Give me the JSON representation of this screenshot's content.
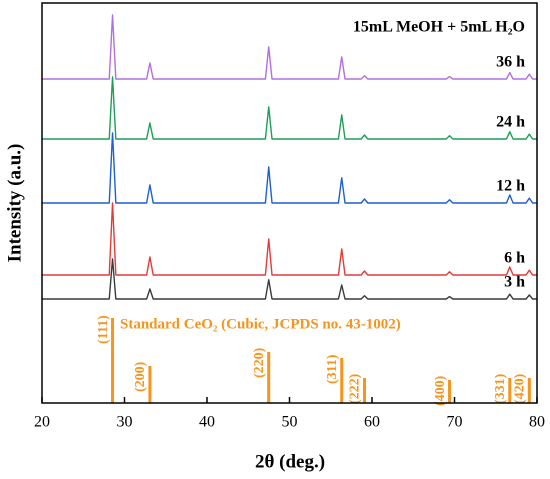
{
  "chart_data": {
    "type": "line",
    "title": "15mL MeOH + 5mL H₂O",
    "xlabel": "2θ (deg.)",
    "ylabel": "Intensity (a.u.)",
    "xlim": [
      20,
      80
    ],
    "xticks": [
      20,
      30,
      40,
      50,
      60,
      70,
      80
    ],
    "ylim": [
      0,
      100
    ],
    "x": [
      20,
      28.15,
      28.55,
      28.95,
      32.68,
      33.08,
      33.48,
      47.08,
      47.48,
      47.88,
      55.93,
      56.33,
      56.73,
      58.69,
      59.09,
      59.49,
      69.0,
      69.4,
      69.8,
      76.3,
      76.7,
      77.1,
      78.67,
      79.07,
      79.47,
      80
    ],
    "series": [
      {
        "name": "3 h",
        "color": "#3a3a3a",
        "values": [
          26,
          26,
          36,
          26,
          26,
          28.5,
          26,
          26,
          30.8,
          26,
          26,
          29.5,
          26,
          26,
          26.8,
          26,
          26,
          26.6,
          26,
          26,
          27.2,
          26,
          26,
          27,
          26,
          26
        ]
      },
      {
        "name": "6 h",
        "color": "#e23b3b",
        "values": [
          32,
          32,
          50,
          32,
          32,
          36.5,
          32,
          32,
          41,
          32,
          32,
          38.5,
          32,
          32,
          33,
          32,
          32,
          32.8,
          32,
          32,
          34,
          32,
          32,
          33.2,
          32,
          32
        ]
      },
      {
        "name": "12 h",
        "color": "#1f5fd0",
        "values": [
          50,
          50,
          67.5,
          50,
          50,
          54.5,
          50,
          50,
          59,
          50,
          50,
          56.3,
          50,
          50,
          51,
          50,
          50,
          50.8,
          50,
          50,
          52,
          50,
          50,
          51.2,
          50,
          50
        ]
      },
      {
        "name": "24 h",
        "color": "#1f9e5a",
        "values": [
          66,
          66,
          81.5,
          66,
          66,
          70,
          66,
          66,
          74,
          66,
          66,
          72,
          66,
          66,
          67,
          66,
          66,
          66.8,
          66,
          66,
          67.8,
          66,
          66,
          67.2,
          66,
          66
        ]
      },
      {
        "name": "36 h",
        "color": "#b070e0",
        "values": [
          81,
          81,
          97,
          81,
          81,
          85,
          81,
          81,
          89,
          81,
          81,
          86.5,
          81,
          81,
          81.8,
          81,
          81,
          81.6,
          81,
          81,
          82.6,
          81,
          81,
          82.2,
          81,
          81
        ]
      }
    ],
    "reference": {
      "name": "Standard CeO₂ (Cubic, JCPDS no. 43-1002)",
      "color": "#f7941d",
      "labels": [
        "(111)",
        "(200)",
        "(220)",
        "(311)",
        "(222)",
        "(400)",
        "(331)",
        "(420)"
      ],
      "x": [
        28.55,
        33.08,
        47.48,
        56.33,
        59.09,
        69.4,
        76.7,
        79.07
      ],
      "values": [
        21.25,
        9.25,
        12.75,
        11.25,
        6.25,
        5.75,
        6.25,
        6.25
      ]
    }
  }
}
